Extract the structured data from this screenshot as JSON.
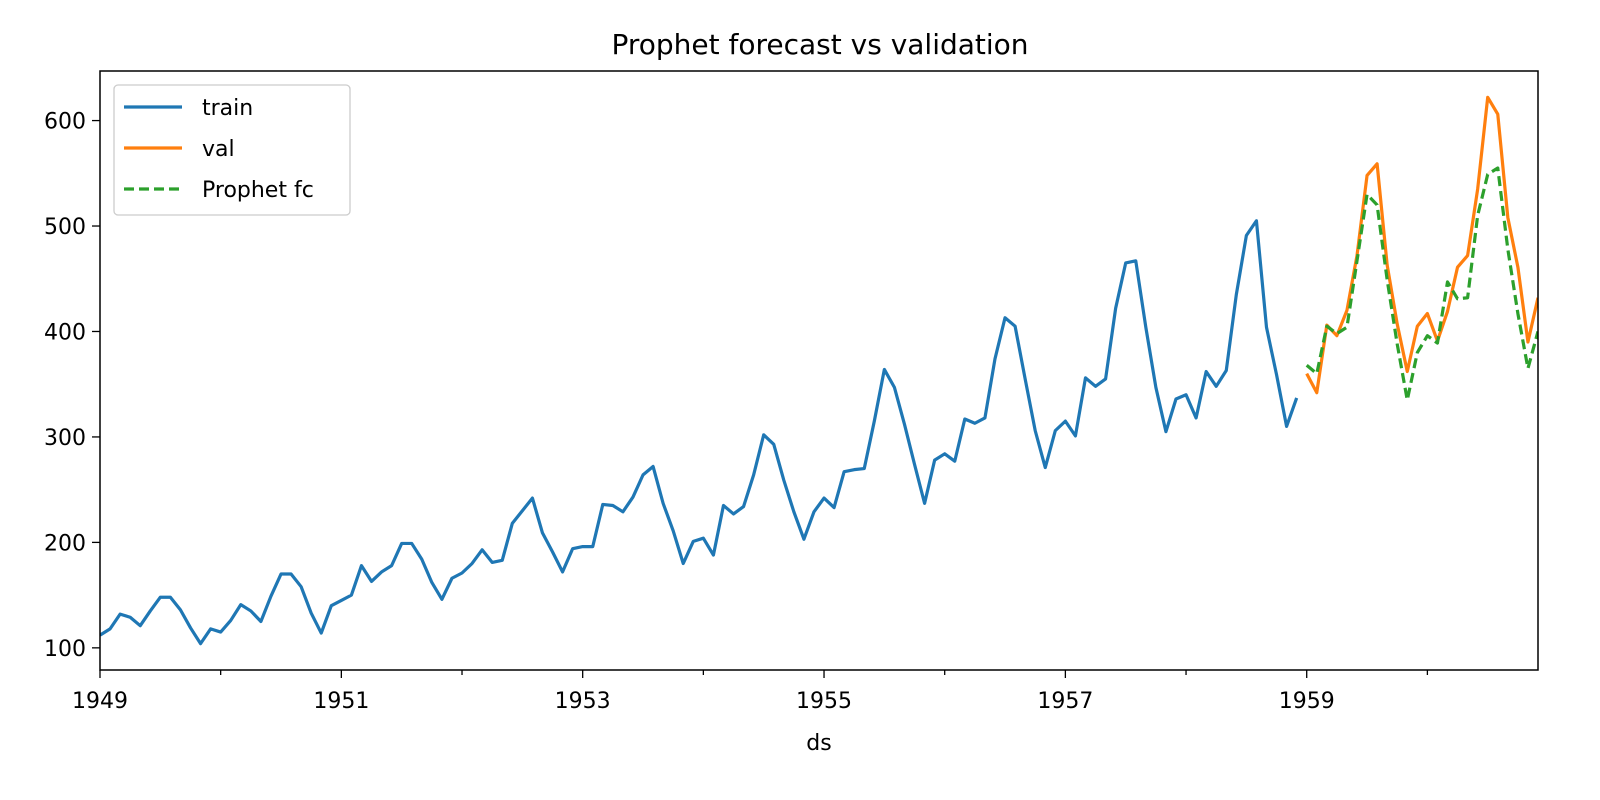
{
  "chart_data": {
    "type": "line",
    "title": "Prophet forecast vs validation",
    "xlabel": "ds",
    "ylabel": "",
    "xlim": [
      "1949-01",
      "1960-12"
    ],
    "ylim": [
      79,
      647
    ],
    "x_ticks": [
      "1949",
      "1951",
      "1953",
      "1955",
      "1957",
      "1959"
    ],
    "y_ticks": [
      100,
      200,
      300,
      400,
      500,
      600
    ],
    "grid": false,
    "legend_position": "upper-left",
    "colors": {
      "train": "#1f77b4",
      "val": "#ff7f0e",
      "forecast": "#2ca02c"
    },
    "series": [
      {
        "name": "train",
        "style": "solid",
        "x_start": "1949-01",
        "frequency": "monthly",
        "values": [
          112,
          118,
          132,
          129,
          121,
          135,
          148,
          148,
          136,
          119,
          104,
          118,
          115,
          126,
          141,
          135,
          125,
          149,
          170,
          170,
          158,
          133,
          114,
          140,
          145,
          150,
          178,
          163,
          172,
          178,
          199,
          199,
          184,
          162,
          146,
          166,
          171,
          180,
          193,
          181,
          183,
          218,
          230,
          242,
          209,
          191,
          172,
          194,
          196,
          196,
          236,
          235,
          229,
          243,
          264,
          272,
          237,
          211,
          180,
          201,
          204,
          188,
          235,
          227,
          234,
          264,
          302,
          293,
          259,
          229,
          203,
          229,
          242,
          233,
          267,
          269,
          270,
          315,
          364,
          347,
          312,
          274,
          237,
          278,
          284,
          277,
          317,
          313,
          318,
          374,
          413,
          405,
          355,
          306,
          271,
          306,
          315,
          301,
          356,
          348,
          355,
          422,
          465,
          467,
          404,
          347,
          305,
          336,
          340,
          318,
          362,
          348,
          363,
          435,
          491,
          505,
          404,
          359,
          310,
          337
        ]
      },
      {
        "name": "val",
        "style": "solid",
        "x_start": "1959-01",
        "frequency": "monthly",
        "values": [
          360,
          342,
          406,
          396,
          420,
          472,
          548,
          559,
          463,
          407,
          362,
          405,
          417,
          391,
          419,
          461,
          472,
          535,
          622,
          606,
          508,
          461,
          390,
          432
        ]
      },
      {
        "name": "Prophet fc",
        "style": "dashed",
        "x_start": "1959-01",
        "frequency": "monthly",
        "values": [
          368,
          360,
          405,
          398,
          404,
          467,
          530,
          520,
          449,
          388,
          335,
          380,
          396,
          389,
          447,
          431,
          432,
          510,
          549,
          555,
          478,
          417,
          365,
          400
        ]
      }
    ]
  }
}
